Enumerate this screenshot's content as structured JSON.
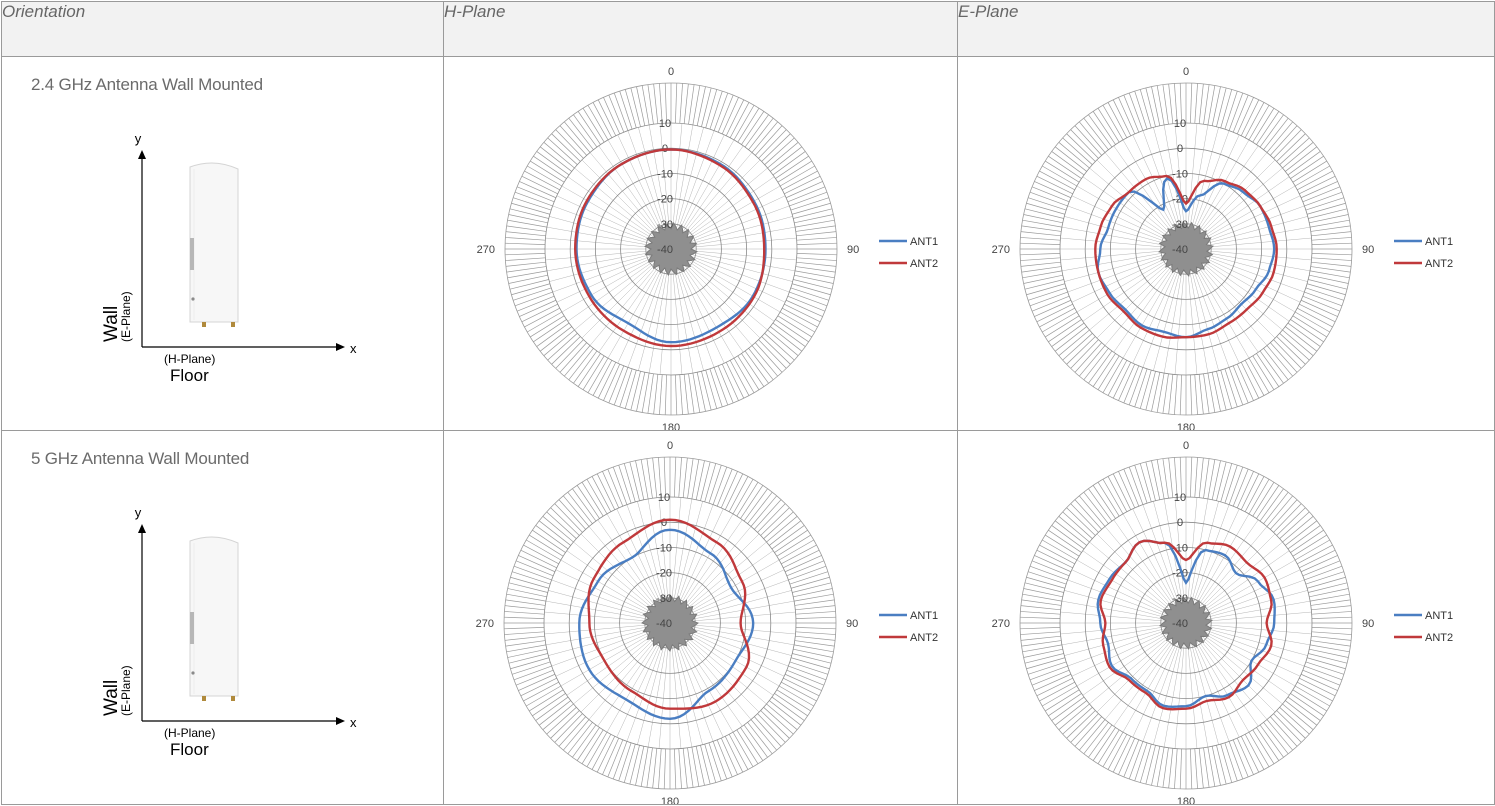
{
  "headers": {
    "orientation": "Orientation",
    "h_plane": "H-Plane",
    "e_plane": "E-Plane"
  },
  "rows": [
    {
      "orientation_title": "2.4 GHz Antenna Wall Mounted",
      "diagram": {
        "axis_y": "y",
        "axis_x": "x",
        "wall": "Wall",
        "wall_sub": "(E-Plane)",
        "floor": "Floor",
        "floor_sub": "(H-Plane)"
      }
    },
    {
      "orientation_title": "5 GHz Antenna Wall Mounted",
      "diagram": {
        "axis_y": "y",
        "axis_x": "x",
        "wall": "Wall",
        "wall_sub": "(E-Plane)",
        "floor": "Floor",
        "floor_sub": "(H-Plane)"
      }
    }
  ],
  "colors": {
    "ant1": "#4a7ec2",
    "ant2": "#c0393b",
    "grid": "#8a8a8a",
    "header_bg": "#f2f2f2"
  },
  "chart_data": [
    {
      "type": "polar-line",
      "id": "h24",
      "r_ticks": [
        "10",
        "0",
        "-10",
        "-20",
        "-30",
        "-40"
      ],
      "r_range": [
        -40,
        10
      ],
      "angle_labels": [
        "0",
        "90",
        "180",
        "270"
      ],
      "theta_deg": [
        0,
        30,
        60,
        90,
        120,
        150,
        180,
        210,
        240,
        270,
        300,
        330
      ],
      "series": [
        {
          "name": "ANT1",
          "values_db": [
            -0.5,
            -1,
            -2,
            -2.5,
            -2.5,
            -4,
            -3,
            -6,
            -3.5,
            -2.5,
            -2,
            -1
          ]
        },
        {
          "name": "ANT2",
          "values_db": [
            -0.5,
            -1.5,
            -2.5,
            -3,
            -2,
            -2,
            -1.5,
            -2.5,
            -2.5,
            -2,
            -1.5,
            -1
          ]
        }
      ]
    },
    {
      "type": "polar-line",
      "id": "e24",
      "r_ticks": [
        "10",
        "0",
        "-10",
        "-20",
        "-30",
        "-40"
      ],
      "r_range": [
        -40,
        10
      ],
      "angle_labels": [
        "0",
        "90",
        "180",
        "270"
      ],
      "theta_deg": [
        0,
        15,
        30,
        45,
        60,
        75,
        90,
        105,
        120,
        135,
        150,
        165,
        180,
        195,
        210,
        225,
        240,
        255,
        270,
        285,
        300,
        315,
        330,
        345
      ],
      "series": [
        {
          "name": "ANT1",
          "values_db": [
            -25,
            -18,
            -10,
            -8,
            -6,
            -6,
            -5,
            -6,
            -8,
            -9,
            -8,
            -7,
            -5,
            -6,
            -5,
            -6,
            -5,
            -4,
            -6,
            -8,
            -8,
            -8,
            -22,
            -11
          ]
        },
        {
          "name": "ANT2",
          "values_db": [
            -22,
            -12,
            -9,
            -7,
            -6,
            -5,
            -4,
            -4,
            -5,
            -6,
            -6,
            -5,
            -5,
            -4,
            -4,
            -5,
            -4,
            -4,
            -4,
            -5,
            -6,
            -8,
            -8,
            -10
          ]
        }
      ]
    },
    {
      "type": "polar-line",
      "id": "h5",
      "r_ticks": [
        "10",
        "0",
        "-10",
        "-20",
        "-30",
        "-40"
      ],
      "r_range": [
        -40,
        10
      ],
      "angle_labels": [
        "0",
        "90",
        "180",
        "270"
      ],
      "theta_deg": [
        0,
        30,
        60,
        90,
        120,
        150,
        180,
        210,
        240,
        270,
        300,
        330
      ],
      "series": [
        {
          "name": "ANT1",
          "values_db": [
            -3,
            -8,
            -12,
            -7,
            -10,
            -9,
            -2,
            -5,
            -3,
            -4,
            -7,
            -10
          ]
        },
        {
          "name": "ANT2",
          "values_db": [
            1,
            -3,
            -7,
            -12,
            -5,
            -4,
            -6,
            -9,
            -10,
            -8,
            -5,
            -3
          ]
        }
      ]
    },
    {
      "type": "polar-line",
      "id": "e5",
      "r_ticks": [
        "10",
        "0",
        "-10",
        "-20",
        "-30",
        "-40"
      ],
      "r_range": [
        -40,
        10
      ],
      "angle_labels": [
        "0",
        "90",
        "180",
        "270"
      ],
      "theta_deg": [
        0,
        15,
        30,
        45,
        60,
        75,
        90,
        105,
        120,
        135,
        150,
        165,
        180,
        195,
        210,
        225,
        240,
        255,
        270,
        285,
        300,
        315,
        330,
        345
      ],
      "series": [
        {
          "name": "ANT1",
          "values_db": [
            -24,
            -10,
            -9,
            -12,
            -7,
            -4,
            -5,
            -7,
            -10,
            -5,
            -7,
            -10,
            -7,
            -6,
            -9,
            -9,
            -6,
            -8,
            -6,
            -4,
            -5,
            -6,
            -3,
            -7
          ]
        },
        {
          "name": "ANT2",
          "values_db": [
            -15,
            -7,
            -5,
            -6,
            -4,
            -5,
            -8,
            -5,
            -7,
            -8,
            -6,
            -8,
            -6,
            -5,
            -8,
            -8,
            -5,
            -6,
            -8,
            -5,
            -6,
            -6,
            -3,
            -7
          ]
        }
      ]
    }
  ]
}
